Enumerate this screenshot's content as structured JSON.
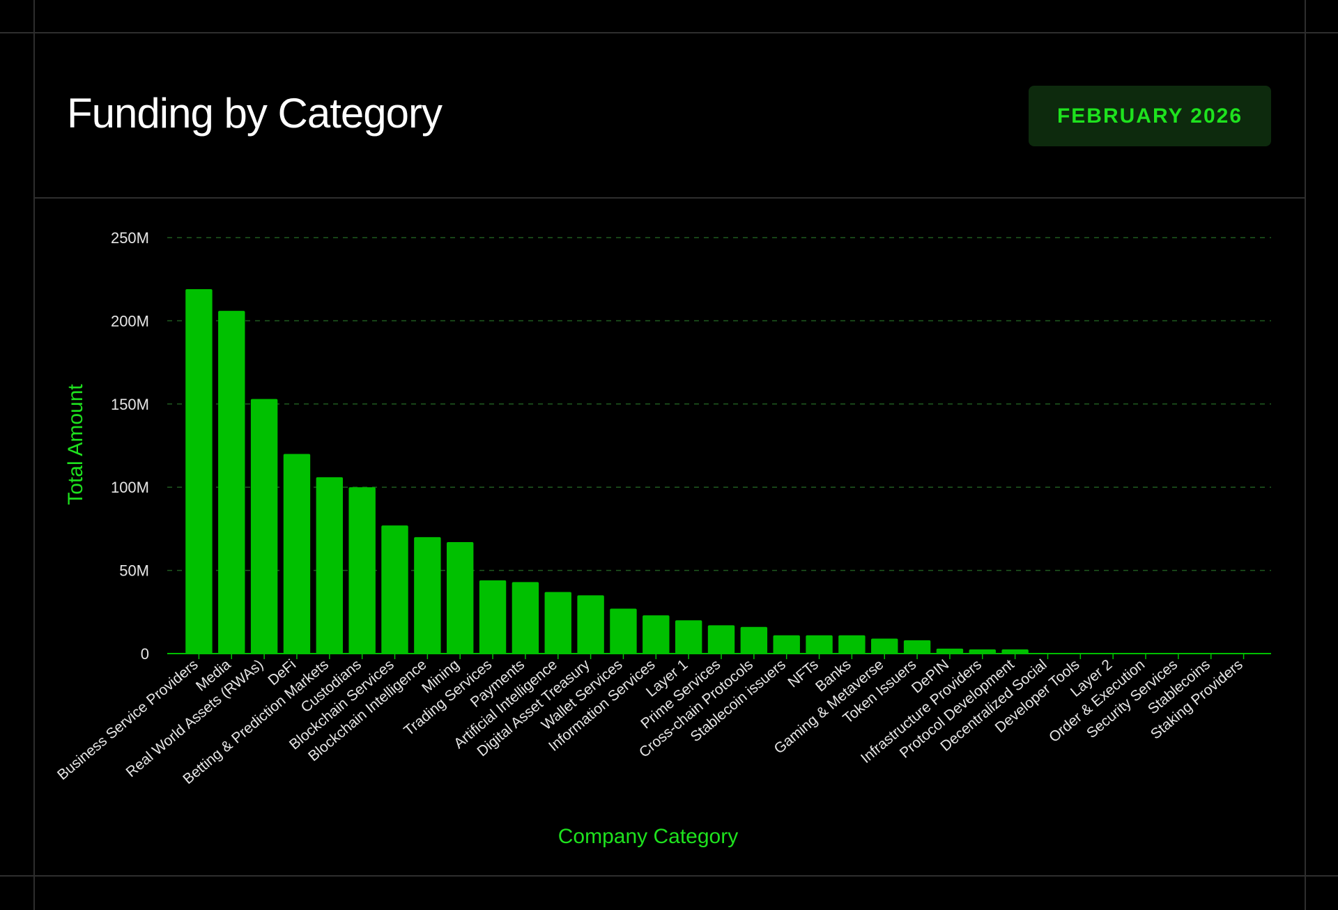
{
  "header": {
    "title": "Funding by Category",
    "badge": "FEBRUARY 2026"
  },
  "colors": {
    "background": "#000000",
    "bar": "#00c000",
    "accent": "#1ee21e",
    "badge_background": "#0d2a0d",
    "gridline": "#1f5a1f"
  },
  "chart_data": {
    "type": "bar",
    "title": "",
    "xlabel": "Company Category",
    "ylabel": "Total Amount",
    "ylim": [
      0,
      250
    ],
    "unit": "M",
    "yticks": [
      0,
      50,
      100,
      150,
      200,
      250
    ],
    "ytick_labels": [
      "0",
      "50M",
      "100M",
      "150M",
      "200M",
      "250M"
    ],
    "grid": true,
    "categories": [
      "Business Service Providers",
      "Media",
      "Real World Assets (RWAs)",
      "DeFi",
      "Betting & Prediction Markets",
      "Custodians",
      "Blockchain Services",
      "Blockchain Intelligence",
      "Mining",
      "Trading Services",
      "Payments",
      "Artificial Intelligence",
      "Digital Asset Treasury",
      "Wallet Services",
      "Information Services",
      "Layer 1",
      "Prime Services",
      "Cross-chain Protocols",
      "Stablecoin issuers",
      "NFTs",
      "Banks",
      "Gaming & Metaverse",
      "Token Issuers",
      "DePIN",
      "Infrastructure Providers",
      "Protocol Development",
      "Decentralized Social",
      "Developer Tools",
      "Layer 2",
      "Order & Execution",
      "Security Services",
      "Stablecoins",
      "Staking Providers"
    ],
    "values": [
      219,
      206,
      153,
      120,
      106,
      100,
      77,
      70,
      67,
      44,
      43,
      37,
      35,
      27,
      23,
      20,
      17,
      16,
      11,
      11,
      11,
      9,
      8,
      3,
      2.5,
      2.5,
      0.4,
      0.1,
      0.1,
      0.1,
      0.1,
      0.1,
      0.1
    ]
  }
}
